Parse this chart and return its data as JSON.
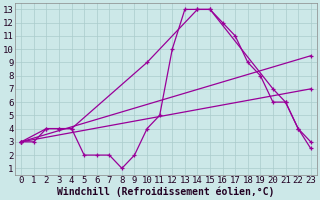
{
  "xlabel": "Windchill (Refroidissement éolien,°C)",
  "xlim": [
    -0.5,
    23.5
  ],
  "ylim": [
    0.5,
    13.5
  ],
  "xticks": [
    0,
    1,
    2,
    3,
    4,
    5,
    6,
    7,
    8,
    9,
    10,
    11,
    12,
    13,
    14,
    15,
    16,
    17,
    18,
    19,
    20,
    21,
    22,
    23
  ],
  "yticks": [
    1,
    2,
    3,
    4,
    5,
    6,
    7,
    8,
    9,
    10,
    11,
    12,
    13
  ],
  "bg_color": "#cce8e8",
  "line_color": "#990099",
  "grid_color": "#aacccc",
  "series": [
    {
      "x": [
        0,
        1,
        2,
        3,
        4,
        5,
        6,
        7,
        8,
        9,
        10,
        11,
        12,
        13,
        14,
        15,
        16,
        17,
        18,
        19,
        20,
        21,
        22,
        23
      ],
      "y": [
        3,
        3,
        4,
        4,
        4,
        2,
        2,
        2,
        1,
        2,
        4,
        5,
        10,
        13,
        13,
        13,
        12,
        11,
        9,
        8,
        6,
        6,
        4,
        3
      ]
    },
    {
      "x": [
        0,
        2,
        3,
        4,
        10,
        14,
        15,
        20,
        21,
        22,
        23
      ],
      "y": [
        3,
        4,
        4,
        4,
        9,
        13,
        13,
        7,
        6,
        4,
        2.5
      ]
    },
    {
      "x": [
        0,
        23
      ],
      "y": [
        3,
        9.5
      ]
    },
    {
      "x": [
        0,
        23
      ],
      "y": [
        3,
        7
      ]
    }
  ],
  "tick_fontsize": 6.5,
  "xlabel_fontsize": 7
}
